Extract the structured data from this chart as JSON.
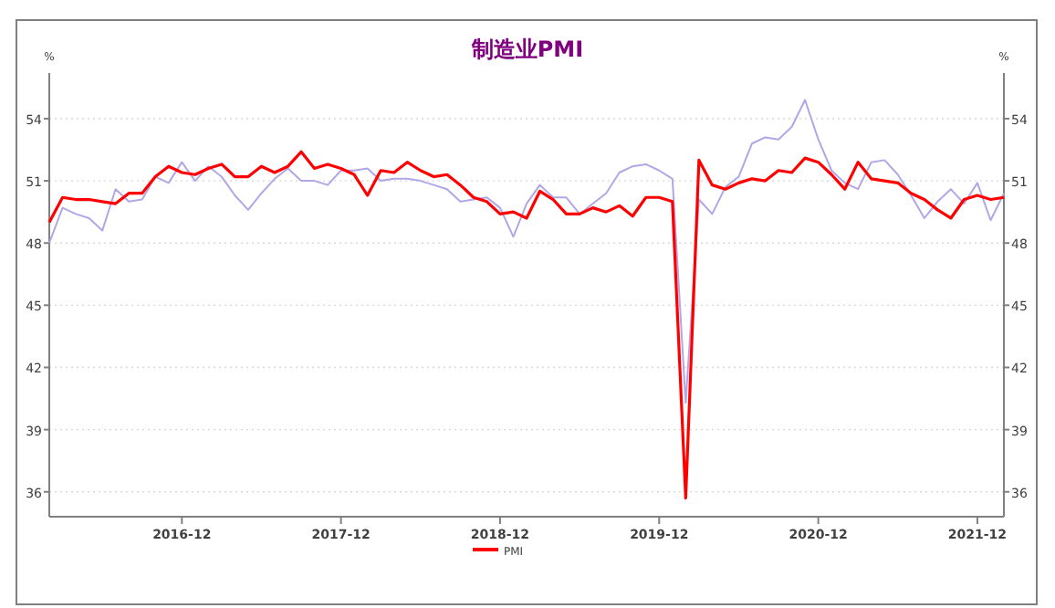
{
  "chart_data": {
    "type": "line",
    "title": "制造业PMI",
    "ylabel": "%",
    "y2label": "%",
    "x": [
      "2016-02",
      "2016-03",
      "2016-04",
      "2016-05",
      "2016-06",
      "2016-07",
      "2016-08",
      "2016-09",
      "2016-10",
      "2016-11",
      "2016-12",
      "2017-01",
      "2017-02",
      "2017-03",
      "2017-04",
      "2017-05",
      "2017-06",
      "2017-07",
      "2017-08",
      "2017-09",
      "2017-10",
      "2017-11",
      "2017-12",
      "2018-01",
      "2018-02",
      "2018-03",
      "2018-04",
      "2018-05",
      "2018-06",
      "2018-07",
      "2018-08",
      "2018-09",
      "2018-10",
      "2018-11",
      "2018-12",
      "2019-01",
      "2019-02",
      "2019-03",
      "2019-04",
      "2019-05",
      "2019-06",
      "2019-07",
      "2019-08",
      "2019-09",
      "2019-10",
      "2019-11",
      "2019-12",
      "2020-01",
      "2020-02",
      "2020-03",
      "2020-04",
      "2020-05",
      "2020-06",
      "2020-07",
      "2020-08",
      "2020-09",
      "2020-10",
      "2020-11",
      "2020-12",
      "2021-01",
      "2021-02",
      "2021-03",
      "2021-04",
      "2021-05",
      "2021-06",
      "2021-07",
      "2021-08",
      "2021-09",
      "2021-10",
      "2021-11",
      "2021-12",
      "2022-01",
      "2022-02"
    ],
    "series": [
      {
        "name": "PMI",
        "color": "#ff0000",
        "values": [
          49.0,
          50.2,
          50.1,
          50.1,
          50.0,
          49.9,
          50.4,
          50.4,
          51.2,
          51.7,
          51.4,
          51.3,
          51.6,
          51.8,
          51.2,
          51.2,
          51.7,
          51.4,
          51.7,
          52.4,
          51.6,
          51.8,
          51.6,
          51.3,
          50.3,
          51.5,
          51.4,
          51.9,
          51.5,
          51.2,
          51.3,
          50.8,
          50.2,
          50.0,
          49.4,
          49.5,
          49.2,
          50.5,
          50.1,
          49.4,
          49.4,
          49.7,
          49.5,
          49.8,
          49.3,
          50.2,
          50.2,
          50.0,
          35.7,
          52.0,
          50.8,
          50.6,
          50.9,
          51.1,
          51.0,
          51.5,
          51.4,
          52.1,
          51.9,
          51.3,
          50.6,
          51.9,
          51.1,
          51.0,
          50.9,
          50.4,
          50.1,
          49.6,
          49.2,
          50.1,
          50.3,
          50.1,
          50.2
        ]
      },
      {
        "color": "#b3a6e6",
        "values": [
          48.0,
          49.7,
          49.4,
          49.2,
          48.6,
          50.6,
          50.0,
          50.1,
          51.2,
          50.9,
          51.9,
          51.0,
          51.7,
          51.2,
          50.3,
          49.6,
          50.4,
          51.1,
          51.6,
          51.0,
          51.0,
          50.8,
          51.5,
          51.5,
          51.6,
          51.0,
          51.1,
          51.1,
          51.0,
          50.8,
          50.6,
          50.0,
          50.1,
          50.2,
          49.7,
          48.3,
          49.9,
          50.8,
          50.2,
          50.2,
          49.4,
          49.9,
          50.4,
          51.4,
          51.7,
          51.8,
          51.5,
          51.1,
          40.3,
          50.1,
          49.4,
          50.7,
          51.2,
          52.8,
          53.1,
          53.0,
          53.6,
          54.9,
          53.0,
          51.5,
          50.9,
          50.6,
          51.9,
          52.0,
          51.3,
          50.3,
          49.2,
          50.0,
          50.6,
          49.9,
          50.9,
          49.1,
          50.4
        ]
      }
    ],
    "xlim": [
      "2016-02",
      "2022-02"
    ],
    "xticks": [
      {
        "value": "2016-12",
        "label": "2016-12"
      },
      {
        "value": "2017-12",
        "label": "2017-12"
      },
      {
        "value": "2018-12",
        "label": "2018-12"
      },
      {
        "value": "2019-12",
        "label": "2019-12"
      },
      {
        "value": "2020-12",
        "label": "2020-12"
      },
      {
        "value": "2021-12",
        "label": "2021-12"
      }
    ],
    "ylim": [
      34.8,
      56.2
    ],
    "yticks": [
      36,
      39,
      42,
      45,
      48,
      51,
      54
    ],
    "y2lim": [
      34.8,
      56.2
    ],
    "y2ticks": [
      36,
      39,
      42,
      45,
      48,
      51,
      54
    ],
    "grid": "y",
    "legend": "bottom",
    "marker": "none",
    "line_style": "solid"
  }
}
